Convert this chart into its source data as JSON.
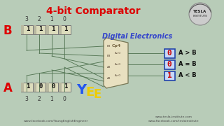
{
  "title": "4-bit Comparator",
  "subtitle": "Digital Electronics",
  "bg_color": "#b8ccb8",
  "title_color": "#dd0000",
  "subtitle_color": "#3344cc",
  "b_label": "B",
  "a_label": "A",
  "b_bits": [
    "1",
    "1",
    "1",
    "1"
  ],
  "a_bits": [
    "1",
    "0",
    "0",
    "1"
  ],
  "bit_indices_top": [
    "3",
    "2",
    "1",
    "0"
  ],
  "bit_indices_bot": [
    "3",
    "2",
    "1",
    "0"
  ],
  "outputs": [
    "0",
    "0",
    "1"
  ],
  "output_labels": [
    "A > B",
    "A = B",
    "A < B"
  ],
  "footer_left": "www.facebook.com/YoungEnglishEngineer",
  "footer_right": "www.facebook.com/teslainstitute",
  "footer_right2": "www.tesla-institute.com",
  "chip_label": "Cp4",
  "wire_color": "#557755",
  "box_face": "#dcdcbc",
  "chip_face": "#e8e0c0",
  "out_box_face": "#c8d8f8",
  "out_box_edge": "#2244aa",
  "tesla_circle": "#cccccc"
}
